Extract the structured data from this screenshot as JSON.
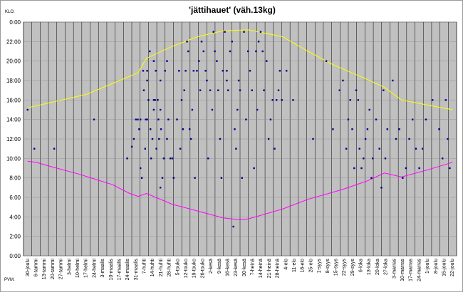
{
  "chart_data": {
    "type": "scatter",
    "title": "'jättihauet' (väh.13kg)",
    "ylabel": "KLO.",
    "xlabel": "PVM.",
    "ylim": [
      0,
      24
    ],
    "y_ticks": [
      "0:00",
      "2:00",
      "4:00",
      "6:00",
      "8:00",
      "10:00",
      "12:00",
      "14:00",
      "16:00",
      "18:00",
      "20:00",
      "22:00",
      "0:00"
    ],
    "x_ticks": [
      "30-joulu",
      "6-tammi",
      "13-tammi",
      "20-tammi",
      "27-tammi",
      "3-helmi",
      "10-helmi",
      "17-helmi",
      "24-helmi",
      "3-maalis",
      "10-maalis",
      "17-maalis",
      "24-maalis",
      "31-maalis",
      "7-huhti",
      "14-huhti",
      "21-huhti",
      "28-huhti",
      "5-touko",
      "12-touko",
      "19-touko",
      "26-touko",
      "2-kesä",
      "9-kesä",
      "16-kesä",
      "23-kesä",
      "30-kesä",
      "7-heinä",
      "14-heinä",
      "21-heinä",
      "28-heinä",
      "4-elo",
      "11-elo",
      "18-elo",
      "25-elo",
      "1-syys",
      "8-syys",
      "15-syys",
      "22-syys",
      "29-syys",
      "6-loka",
      "13-loka",
      "20-loka",
      "27-loka",
      "3-marras",
      "10-marras",
      "17-marras",
      "24-marras",
      "1-joulu",
      "8-joulu",
      "15-joulu",
      "22-joulu"
    ],
    "grid": true,
    "colors": {
      "plot_bg": "#c0c0c0",
      "points": "#00008b",
      "sunset": "#ffff00",
      "sunrise": "#ff00ff",
      "grid": "#000000"
    },
    "series": [
      {
        "type": "line",
        "color": "#ffff00",
        "points": [
          [
            0,
            15.2
          ],
          [
            7,
            16.6
          ],
          [
            13,
            18.8
          ],
          [
            14,
            20.3
          ],
          [
            17,
            21.5
          ],
          [
            20,
            22.5
          ],
          [
            23,
            23.1
          ],
          [
            26,
            23.2
          ],
          [
            30,
            22.5
          ],
          [
            33,
            21.0
          ],
          [
            36,
            19.6
          ],
          [
            40,
            18.1
          ],
          [
            42,
            17.3
          ],
          [
            44,
            16.0
          ],
          [
            47,
            15.5
          ],
          [
            50,
            15.0
          ]
        ]
      },
      {
        "type": "line",
        "color": "#ff00ff",
        "points": [
          [
            0,
            9.7
          ],
          [
            1,
            9.6
          ],
          [
            3,
            9.1
          ],
          [
            6,
            8.4
          ],
          [
            10,
            7.3
          ],
          [
            12,
            6.4
          ],
          [
            13,
            6.1
          ],
          [
            14,
            6.4
          ],
          [
            17,
            5.3
          ],
          [
            20,
            4.6
          ],
          [
            23,
            3.9
          ],
          [
            25,
            3.7
          ],
          [
            26,
            3.8
          ],
          [
            30,
            4.8
          ],
          [
            33,
            5.8
          ],
          [
            37,
            6.8
          ],
          [
            40,
            7.7
          ],
          [
            42,
            8.5
          ],
          [
            44,
            8.1
          ],
          [
            47,
            8.8
          ],
          [
            50,
            9.6
          ]
        ]
      },
      {
        "type": "scatter",
        "color": "#00008b",
        "points": [
          [
            0,
            15
          ],
          [
            1,
            11
          ],
          [
            4,
            11
          ],
          [
            10,
            14
          ],
          [
            15,
            10
          ],
          [
            15.7,
            11.2
          ],
          [
            16,
            12
          ],
          [
            16.3,
            14
          ],
          [
            16.6,
            14
          ],
          [
            16.8,
            13
          ],
          [
            17,
            9
          ],
          [
            17,
            14
          ],
          [
            17.2,
            8
          ],
          [
            17.4,
            19
          ],
          [
            17.5,
            17
          ],
          [
            17.7,
            11
          ],
          [
            17.8,
            14
          ],
          [
            18,
            18
          ],
          [
            18,
            19
          ],
          [
            18,
            14
          ],
          [
            18.2,
            16
          ],
          [
            18.4,
            21
          ],
          [
            18.5,
            13
          ],
          [
            18.6,
            10
          ],
          [
            18.8,
            12
          ],
          [
            19,
            20
          ],
          [
            19,
            16
          ],
          [
            19,
            15
          ],
          [
            19.2,
            16
          ],
          [
            19.3,
            19
          ],
          [
            19.4,
            11
          ],
          [
            19.6,
            16
          ],
          [
            19.7,
            14
          ],
          [
            19.8,
            12
          ],
          [
            20,
            7
          ],
          [
            20,
            18
          ],
          [
            20,
            15
          ],
          [
            20.1,
            13
          ],
          [
            20.3,
            8
          ],
          [
            20.5,
            10
          ],
          [
            20.7,
            19
          ],
          [
            21,
            20
          ],
          [
            21,
            12
          ],
          [
            21.2,
            14
          ],
          [
            21.5,
            10
          ],
          [
            21.8,
            10
          ],
          [
            22,
            8
          ],
          [
            22.5,
            14
          ],
          [
            22.8,
            19
          ],
          [
            23,
            11
          ],
          [
            23.2,
            16
          ],
          [
            23.4,
            13
          ],
          [
            23.6,
            17
          ],
          [
            23.8,
            19
          ],
          [
            24,
            22
          ],
          [
            24.2,
            21
          ],
          [
            24.4,
            13
          ],
          [
            24.6,
            12
          ],
          [
            24.8,
            15
          ],
          [
            25,
            19
          ],
          [
            25.2,
            8
          ],
          [
            25.5,
            19
          ],
          [
            25.8,
            20
          ],
          [
            26,
            17
          ],
          [
            26.2,
            22
          ],
          [
            26.5,
            21
          ],
          [
            26.8,
            19
          ],
          [
            27,
            18
          ],
          [
            27.2,
            10
          ],
          [
            27.5,
            17
          ],
          [
            27.8,
            15
          ],
          [
            28,
            23
          ],
          [
            28.2,
            21
          ],
          [
            28.5,
            20
          ],
          [
            28.7,
            17
          ],
          [
            29,
            12
          ],
          [
            29.2,
            8
          ],
          [
            29.4,
            19
          ],
          [
            29.7,
            23
          ],
          [
            30,
            19
          ],
          [
            30,
            18
          ],
          [
            30.2,
            17
          ],
          [
            30.5,
            21
          ],
          [
            30.8,
            22
          ],
          [
            31,
            3
          ],
          [
            31.2,
            13
          ],
          [
            31.4,
            11
          ],
          [
            31.6,
            15
          ],
          [
            31.8,
            18
          ],
          [
            32,
            17
          ],
          [
            32.3,
            8
          ],
          [
            32.6,
            23
          ],
          [
            32.9,
            14
          ],
          [
            33.2,
            21
          ],
          [
            33.5,
            19
          ],
          [
            33.8,
            17
          ],
          [
            34.1,
            9
          ],
          [
            34.4,
            21
          ],
          [
            34.6,
            15
          ],
          [
            34.8,
            22
          ],
          [
            35.1,
            23
          ],
          [
            35.4,
            21
          ],
          [
            35.6,
            17
          ],
          [
            36,
            20
          ],
          [
            36.3,
            12
          ],
          [
            36.6,
            14
          ],
          [
            36.9,
            16
          ],
          [
            37.2,
            11
          ],
          [
            37.5,
            16
          ],
          [
            37.8,
            17
          ],
          [
            38,
            19
          ],
          [
            38.3,
            16
          ],
          [
            39,
            19
          ],
          [
            40,
            16
          ],
          [
            43,
            12
          ],
          [
            45,
            20
          ],
          [
            46,
            13
          ],
          [
            47,
            17
          ],
          [
            47.5,
            18
          ],
          [
            48,
            11
          ],
          [
            48.3,
            14
          ],
          [
            48.6,
            16
          ],
          [
            48.9,
            13
          ],
          [
            49.2,
            9
          ],
          [
            49.5,
            17
          ],
          [
            49.8,
            16
          ],
          [
            50,
            11
          ],
          [
            50.3,
            9
          ],
          [
            50.6,
            10
          ],
          [
            50.9,
            12
          ],
          [
            51.2,
            13
          ],
          [
            51.5,
            15
          ],
          [
            51.8,
            8
          ],
          [
            52,
            10
          ],
          [
            52.5,
            14
          ],
          [
            53,
            11
          ],
          [
            53.3,
            7
          ],
          [
            53.6,
            17
          ],
          [
            53.9,
            10
          ],
          [
            54.2,
            13
          ],
          [
            55,
            18
          ],
          [
            55.5,
            12
          ],
          [
            56,
            13
          ],
          [
            56.5,
            8
          ],
          [
            57,
            9
          ],
          [
            57.5,
            12
          ],
          [
            58,
            14
          ],
          [
            58.5,
            11
          ],
          [
            59,
            9
          ],
          [
            59.5,
            11
          ],
          [
            60,
            14
          ],
          [
            61,
            16
          ],
          [
            62,
            13
          ],
          [
            62.5,
            10
          ],
          [
            63,
            16
          ],
          [
            63.3,
            12
          ],
          [
            63.6,
            9
          ]
        ]
      }
    ]
  }
}
